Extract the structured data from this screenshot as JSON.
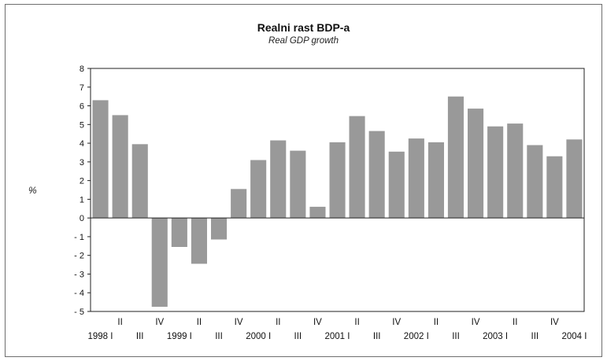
{
  "chart_data": {
    "type": "bar",
    "title": "Realni rast BDP-a",
    "subtitle": "Real GDP growth",
    "ylabel": "%",
    "xlabel": "",
    "ylim": [
      -5,
      8
    ],
    "yticks": [
      8,
      7,
      6,
      5,
      4,
      3,
      2,
      1,
      0,
      -1,
      -2,
      -3,
      -4,
      -5
    ],
    "ytick_labels": [
      "8",
      "7",
      "6",
      "5",
      "4",
      "3",
      "2",
      "1",
      "0",
      "- 1",
      "- 2",
      "- 3",
      "- 4",
      "- 5"
    ],
    "grid": false,
    "bar_color": "#999999",
    "categories": [
      "1998 I",
      "II",
      "III",
      "IV",
      "1999 I",
      "II",
      "III",
      "IV",
      "2000 I",
      "II",
      "III",
      "IV",
      "2001 I",
      "II",
      "III",
      "IV",
      "2002 I",
      "II",
      "III",
      "IV",
      "2003 I",
      "II",
      "III",
      "IV",
      "2004 I"
    ],
    "values": [
      6.3,
      5.5,
      3.95,
      -4.75,
      -1.55,
      -2.45,
      -1.15,
      1.55,
      3.1,
      4.15,
      3.6,
      0.6,
      4.05,
      5.45,
      4.65,
      3.55,
      4.25,
      4.05,
      6.5,
      5.85,
      4.9,
      5.05,
      3.9,
      3.3,
      4.2
    ]
  }
}
